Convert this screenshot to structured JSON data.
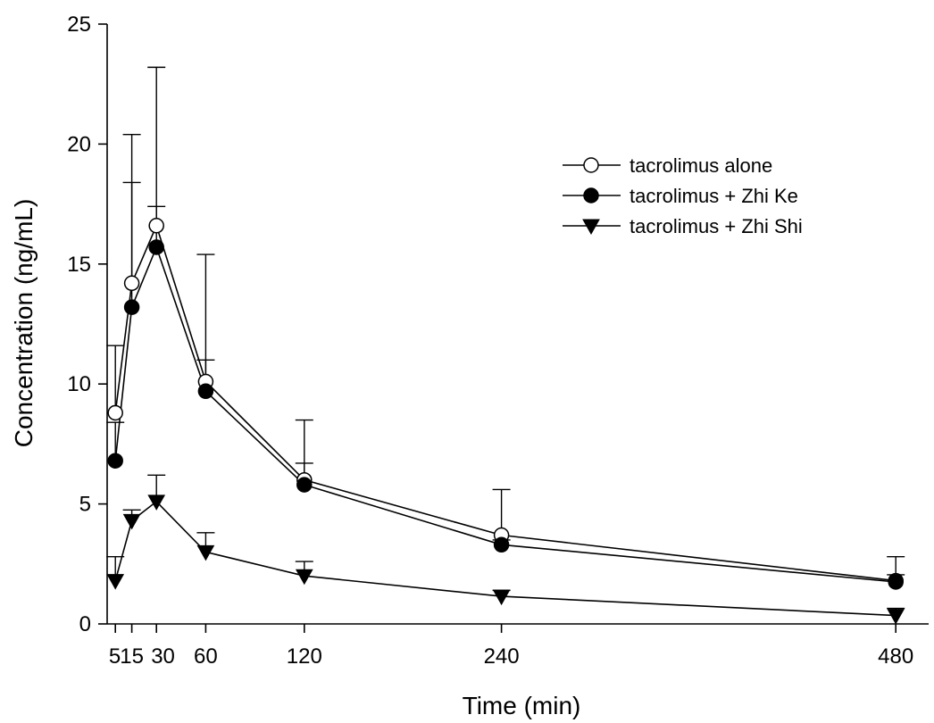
{
  "chart_data": {
    "type": "line",
    "xlabel": "Time (min)",
    "ylabel": "Concentration (ng/mL)",
    "xlim": [
      0,
      500
    ],
    "ylim": [
      0,
      25
    ],
    "x_ticks": [
      5,
      15,
      30,
      60,
      120,
      240,
      480
    ],
    "x_tick_labels": [
      "5",
      "15",
      "30",
      "60",
      "120",
      "240",
      "480"
    ],
    "y_ticks": [
      0,
      5,
      10,
      15,
      20,
      25
    ],
    "y_tick_labels": [
      "0",
      "5",
      "10",
      "15",
      "20",
      "25"
    ],
    "grid": false,
    "legend_position": "upper-right",
    "x": [
      5,
      15,
      30,
      60,
      120,
      240,
      480
    ],
    "series": [
      {
        "name": "tacrolimus alone",
        "marker": "open-circle",
        "values": [
          8.8,
          14.2,
          16.6,
          10.1,
          6.0,
          3.7,
          1.8
        ],
        "error_upper": [
          2.8,
          6.2,
          6.6,
          5.3,
          2.5,
          1.9,
          1.0
        ]
      },
      {
        "name": "tacrolimus + Zhi Ke",
        "marker": "filled-circle",
        "values": [
          6.8,
          13.2,
          15.7,
          9.7,
          5.8,
          3.3,
          1.75
        ],
        "error_upper": [
          1.6,
          5.2,
          1.7,
          1.3,
          0.9,
          0.2,
          0.3
        ]
      },
      {
        "name": "tacrolimus + Zhi Shi",
        "marker": "filled-down-triangle",
        "values": [
          1.8,
          4.3,
          5.1,
          3.0,
          2.0,
          1.15,
          0.35
        ],
        "error_upper": [
          1.0,
          0.45,
          1.1,
          0.8,
          0.6,
          0.25,
          0.3
        ]
      }
    ]
  }
}
